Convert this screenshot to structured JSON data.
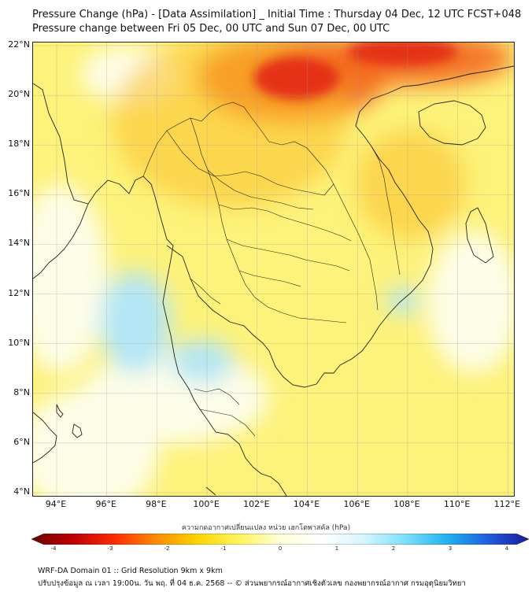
{
  "header": {
    "title_line1": "Pressure Change (hPa) - [Data Assimilation] _ Initial Time : Thursday 04 Dec, 12 UTC FCST+048",
    "title_line2": "Pressure change between Fri 05 Dec, 00 UTC and Sun 07 Dec, 00 UTC"
  },
  "map": {
    "lat_labels": [
      "22°N",
      "20°N",
      "18°N",
      "16°N",
      "14°N",
      "12°N",
      "10°N",
      "8°N",
      "6°N",
      "4°N"
    ],
    "lon_labels": [
      "94°E",
      "96°E",
      "98°E",
      "100°E",
      "102°E",
      "104°E",
      "106°E",
      "108°E",
      "110°E",
      "112°E"
    ],
    "colors": {
      "base": "#fdf27a",
      "strong_rise": "#f36a1e",
      "peak": "#e53312",
      "fall": "#b4e6f5",
      "neutral": "#fdfde8",
      "coast": "#222222"
    }
  },
  "colorbar": {
    "title": "ความกดอากาศเปลี่ยนแปลง หน่วย เฮกโตพาสคัล (hPa)",
    "tick_labels": [
      "-4",
      "-3",
      "-2",
      "-1",
      "0",
      "1",
      "2",
      "3",
      "4"
    ],
    "stops": [
      "#6b0000",
      "#c00000",
      "#ff2a00",
      "#ff8a00",
      "#ffd400",
      "#fff45a",
      "#ffffd8",
      "#ffffff",
      "#d6f6ff",
      "#7ee0ff",
      "#22b4f0",
      "#1f5fe0",
      "#1a1a9a"
    ]
  },
  "footer": {
    "line1": "WRF-DA Domain 01 :: Grid Resolution 9km x 9km",
    "line2": "ปรับปรุงข้อมูล ณ เวลา 19:00น. วัน พฤ. ที่ 04 ธ.ค. 2568 -- © ส่วนพยากรณ์อากาศเชิงตัวเลข กองพยากรณ์อากาศ กรมอุตุนิยมวิทยา"
  }
}
